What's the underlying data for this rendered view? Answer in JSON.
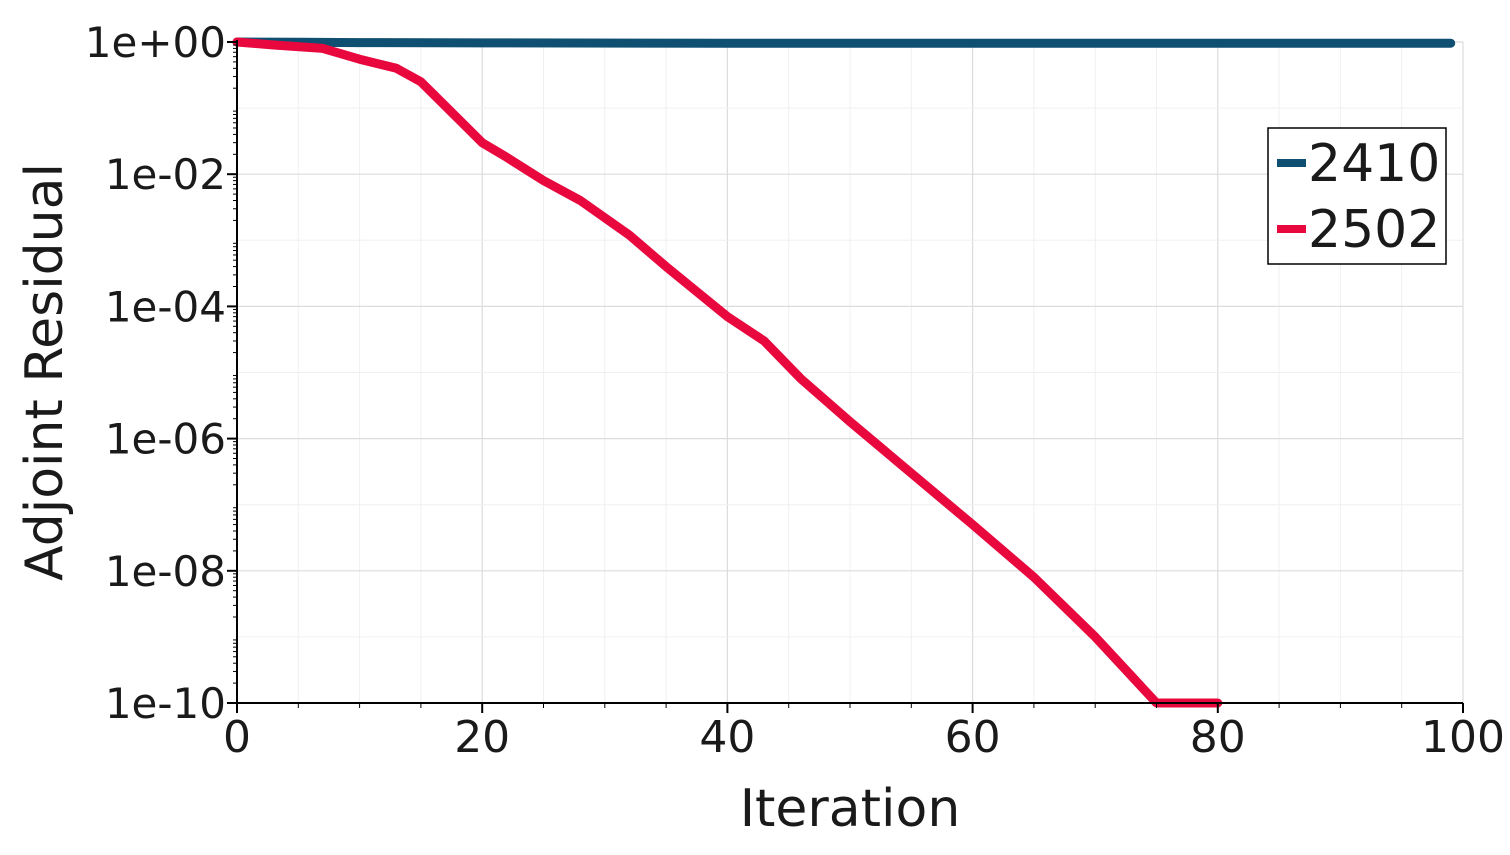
{
  "chart_data": {
    "type": "line",
    "title": "",
    "xlabel": "Iteration",
    "ylabel": "Adjoint Residual",
    "xlim": [
      0,
      100
    ],
    "ylim_log10": [
      -10,
      0
    ],
    "y_scale": "log",
    "x_ticks": [
      0,
      20,
      40,
      60,
      80,
      100
    ],
    "x_tick_labels": [
      "0",
      "20",
      "40",
      "60",
      "80",
      "100"
    ],
    "y_ticks_log10": [
      0,
      -2,
      -4,
      -6,
      -8,
      -10
    ],
    "y_tick_labels": [
      "1e+00",
      "1e-02",
      "1e-04",
      "1e-06",
      "1e-08",
      "1e-10"
    ],
    "grid": true,
    "legend_position": "top-right",
    "series": [
      {
        "name": "2410",
        "color": "#0f4f72",
        "x": [
          0,
          5,
          10,
          20,
          40,
          60,
          80,
          99
        ],
        "y": [
          1,
          0.99,
          0.98,
          0.97,
          0.96,
          0.96,
          0.96,
          0.96
        ]
      },
      {
        "name": "2502",
        "color": "#e8083e",
        "x": [
          0,
          3,
          7,
          10,
          13,
          15,
          18,
          20,
          22,
          25,
          28,
          32,
          35,
          40,
          43,
          46,
          50,
          55,
          60,
          65,
          70,
          75,
          78,
          80
        ],
        "y": [
          1.0,
          0.9,
          0.8,
          0.55,
          0.4,
          0.25,
          0.07,
          0.03,
          0.018,
          0.008,
          0.004,
          0.0012,
          0.0004,
          7e-05,
          3e-05,
          8e-06,
          1.8e-06,
          3e-07,
          5e-08,
          8e-09,
          1e-09,
          1e-10,
          3e-11,
          1e-11
        ]
      }
    ]
  }
}
